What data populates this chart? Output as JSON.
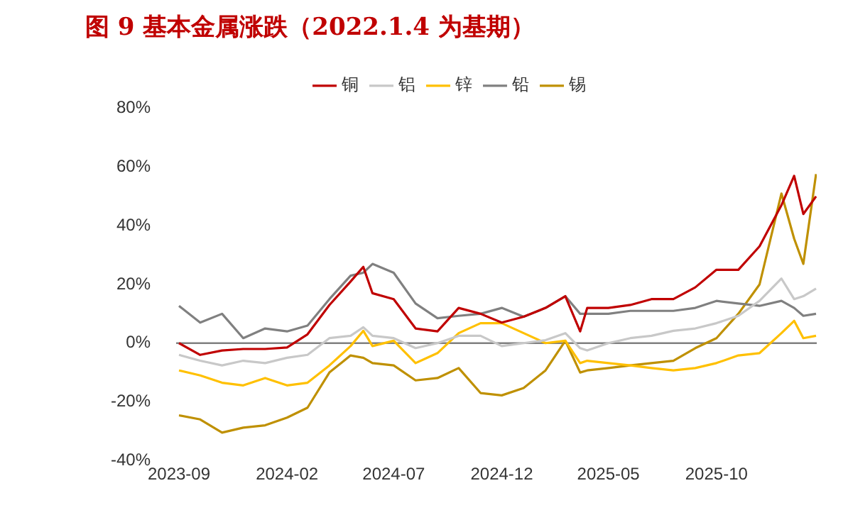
{
  "chart_data": {
    "type": "line",
    "title": "图 9 基本金属涨跌（2022.1.4 为基期）",
    "x": [
      "2023-09-01",
      "2023-10-01",
      "2023-11-01",
      "2023-12-01",
      "2024-01-01",
      "2024-02-01",
      "2024-03-01",
      "2024-04-01",
      "2024-05-01",
      "2024-05-19",
      "2024-06-01",
      "2024-07-01",
      "2024-08-01",
      "2024-09-01",
      "2024-10-01",
      "2024-11-01",
      "2024-12-01",
      "2025-01-01",
      "2025-02-01",
      "2025-03-01",
      "2025-03-22",
      "2025-04-01",
      "2025-05-01",
      "2025-06-01",
      "2025-07-01",
      "2025-08-01",
      "2025-09-01",
      "2025-10-01",
      "2025-11-01",
      "2025-12-01",
      "2026-01-01",
      "2026-01-19",
      "2026-02-01",
      "2026-02-19"
    ],
    "series": [
      {
        "name": "铜",
        "color": "#c00000",
        "values": [
          0,
          -4,
          -2.5,
          -2,
          -2,
          -1.5,
          3,
          13,
          21,
          26,
          17,
          15,
          5,
          4,
          12,
          10,
          7,
          9,
          12,
          16,
          4,
          12,
          12,
          13,
          15,
          15,
          19,
          25,
          25,
          33,
          47,
          57,
          44,
          50
        ]
      },
      {
        "name": "铝",
        "color": "#c8c8c8",
        "values": [
          -4,
          -6,
          -7.6,
          -6,
          -6.8,
          -5,
          -4,
          1.7,
          2.5,
          5.4,
          2.5,
          1.7,
          -1.7,
          0,
          2.5,
          2.5,
          -1,
          0,
          1,
          3.4,
          -1.7,
          -2.5,
          0,
          1.7,
          2.5,
          4.2,
          5,
          6.8,
          9.3,
          14.4,
          22,
          15,
          16,
          18.6
        ]
      },
      {
        "name": "锌",
        "color": "#ffc000",
        "values": [
          -9.3,
          -11,
          -13.5,
          -14.4,
          -11.9,
          -14.4,
          -13.5,
          -7.6,
          -1,
          4.2,
          -1,
          0.8,
          -6.8,
          -3.4,
          3.4,
          6.8,
          6.8,
          3.4,
          0,
          0.8,
          -6.8,
          -6,
          -6.8,
          -7.6,
          -8.5,
          -9.3,
          -8.5,
          -6.8,
          -4.2,
          -3.4,
          3.4,
          7.6,
          1.7,
          2.5
        ]
      },
      {
        "name": "铅",
        "color": "#808080",
        "values": [
          12.7,
          7,
          10,
          1.7,
          5,
          4,
          6,
          15,
          23,
          24,
          27,
          24,
          13.5,
          8.5,
          9.3,
          10,
          12,
          9,
          12,
          16,
          10,
          10,
          10,
          11,
          11,
          11,
          12,
          14.4,
          13.5,
          12.7,
          14.4,
          12,
          9.3,
          10
        ]
      },
      {
        "name": "锡",
        "color": "#bf9000",
        "values": [
          -24.6,
          -26,
          -30.5,
          -28.8,
          -28,
          -25.4,
          -22,
          -10,
          -4.2,
          -5,
          -6.8,
          -7.6,
          -12.7,
          -11.9,
          -8.5,
          -17,
          -17.8,
          -15.3,
          -9.3,
          0.8,
          -10,
          -9.3,
          -8.5,
          -7.6,
          -6.8,
          -6,
          -1.7,
          1.7,
          10,
          20,
          51,
          35.6,
          27,
          57.6
        ]
      }
    ],
    "xlim": [
      "2023-08-28",
      "2026-02-20"
    ],
    "xticks": [
      {
        "value": "2023-09-01",
        "label": "2023-09"
      },
      {
        "value": "2024-02-01",
        "label": "2024-02"
      },
      {
        "value": "2024-07-01",
        "label": "2024-07"
      },
      {
        "value": "2024-12-01",
        "label": "2024-12"
      },
      {
        "value": "2025-05-01",
        "label": "2025-05"
      },
      {
        "value": "2025-10-01",
        "label": "2025-10"
      }
    ],
    "ylim": [
      -40,
      80
    ],
    "yticks": [
      {
        "value": -40,
        "label": "-40%"
      },
      {
        "value": -20,
        "label": "-20%"
      },
      {
        "value": 0,
        "label": "0%"
      },
      {
        "value": 20,
        "label": "20%"
      },
      {
        "value": 40,
        "label": "40%"
      },
      {
        "value": 60,
        "label": "60%"
      },
      {
        "value": 80,
        "label": "80%"
      }
    ],
    "ref_lines": [
      {
        "axis": "y",
        "value": 0,
        "color": "#808080"
      }
    ],
    "legend": "top",
    "grid": false,
    "marker": "none",
    "line_style": "solid"
  }
}
